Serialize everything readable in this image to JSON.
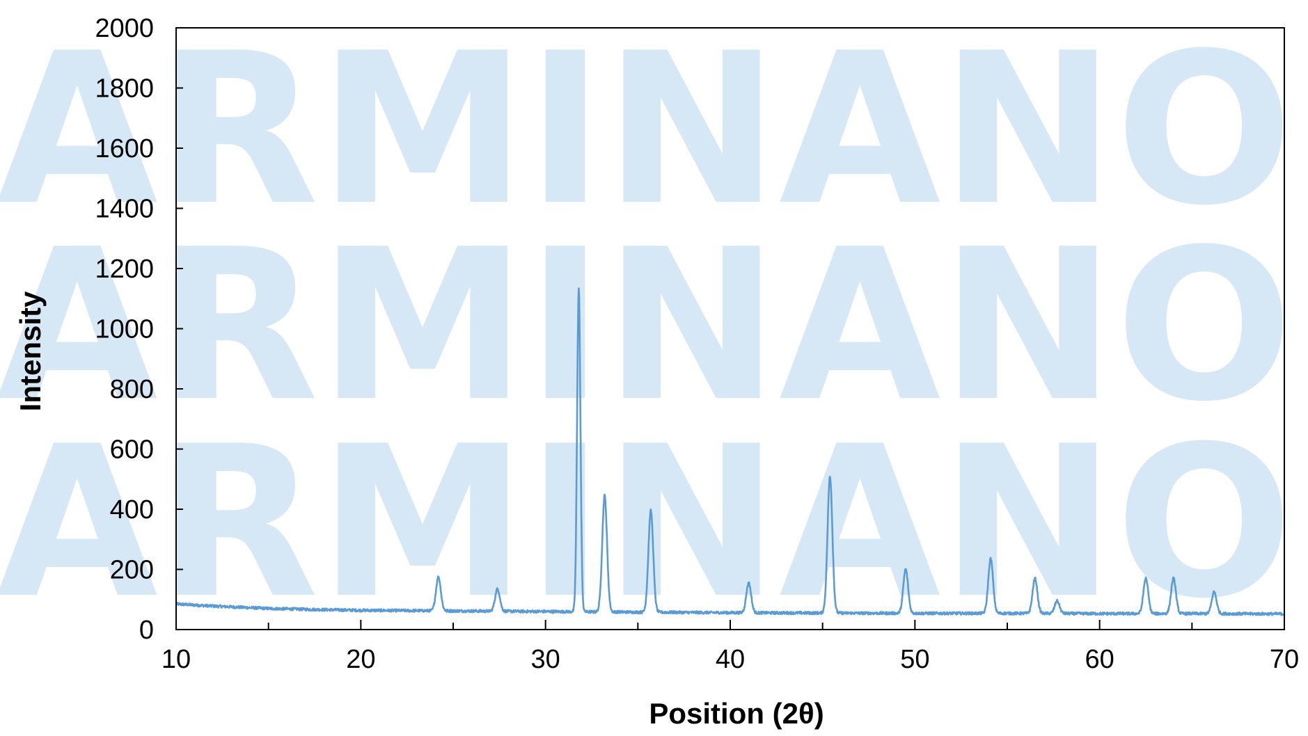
{
  "watermark": {
    "text": "ARMINANO",
    "color": "#d6e7f5"
  },
  "colors": {
    "series": "#5b9bd5",
    "axis": "#000000",
    "background": "#ffffff"
  },
  "chart_data": {
    "type": "line",
    "title": "",
    "xlabel": "Position (2θ)",
    "ylabel": "Intensity",
    "xlim": [
      10,
      70
    ],
    "ylim": [
      0,
      2000
    ],
    "xticks": [
      10,
      20,
      30,
      40,
      50,
      60,
      70
    ],
    "yticks": [
      0,
      200,
      400,
      600,
      800,
      1000,
      1200,
      1400,
      1600,
      1800,
      2000
    ],
    "grid": false,
    "legend": "none",
    "baseline": [
      [
        10,
        85
      ],
      [
        12,
        78
      ],
      [
        15,
        70
      ],
      [
        18,
        66
      ],
      [
        20,
        64
      ],
      [
        25,
        62
      ],
      [
        30,
        60
      ],
      [
        35,
        58
      ],
      [
        40,
        56
      ],
      [
        45,
        55
      ],
      [
        50,
        54
      ],
      [
        55,
        54
      ],
      [
        60,
        53
      ],
      [
        65,
        53
      ],
      [
        70,
        52
      ]
    ],
    "peaks": [
      {
        "x": 24.2,
        "y": 175
      },
      {
        "x": 27.4,
        "y": 135
      },
      {
        "x": 31.8,
        "y": 1135
      },
      {
        "x": 33.2,
        "y": 445
      },
      {
        "x": 35.7,
        "y": 395
      },
      {
        "x": 41.0,
        "y": 155
      },
      {
        "x": 45.4,
        "y": 510
      },
      {
        "x": 49.5,
        "y": 200
      },
      {
        "x": 54.1,
        "y": 235
      },
      {
        "x": 56.5,
        "y": 170
      },
      {
        "x": 57.7,
        "y": 95
      },
      {
        "x": 62.5,
        "y": 170
      },
      {
        "x": 64.0,
        "y": 170
      },
      {
        "x": 66.2,
        "y": 125
      }
    ]
  }
}
